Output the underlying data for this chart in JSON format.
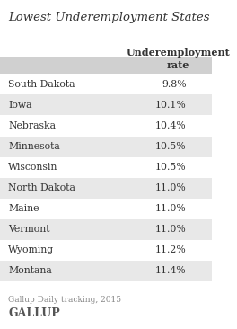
{
  "title": "Lowest Underemployment States",
  "col_header": "Underemployment\nrate",
  "states": [
    "South Dakota",
    "Iowa",
    "Nebraska",
    "Minnesota",
    "Wisconsin",
    "North Dakota",
    "Maine",
    "Vermont",
    "Wyoming",
    "Montana"
  ],
  "values": [
    "9.8%",
    "10.1%",
    "10.4%",
    "10.5%",
    "10.5%",
    "11.0%",
    "11.0%",
    "11.0%",
    "11.2%",
    "11.4%"
  ],
  "footer": "Gallup Daily tracking, 2015",
  "brand": "GALLUP",
  "bg_color": "#ffffff",
  "row_colors": [
    "#ffffff",
    "#e8e8e8"
  ],
  "header_row_color": "#d0d0d0",
  "text_color": "#333333",
  "title_color": "#333333",
  "footer_color": "#888888",
  "brand_color": "#555555"
}
